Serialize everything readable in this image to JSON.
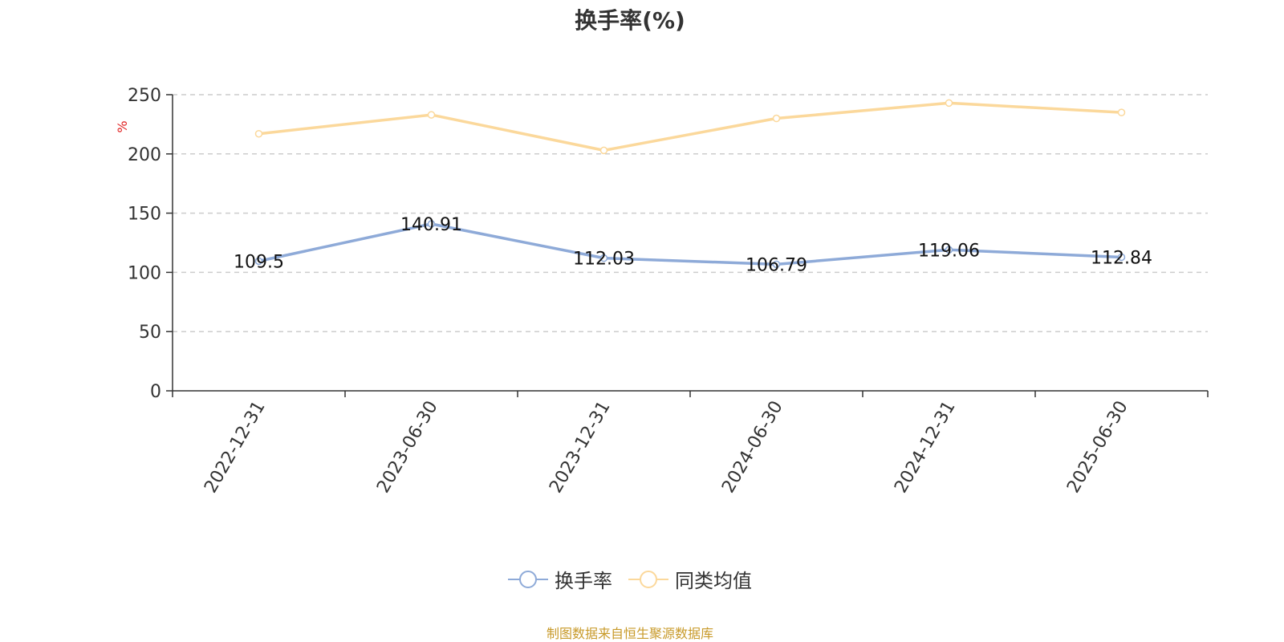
{
  "chart_data": {
    "type": "line",
    "title": "换手率(%)",
    "ylabel": "%",
    "categories": [
      "2022-12-31",
      "2023-06-30",
      "2023-12-31",
      "2024-06-30",
      "2024-12-31",
      "2025-06-30"
    ],
    "ylim": [
      0,
      250
    ],
    "yticks": [
      0,
      50,
      100,
      150,
      200,
      250
    ],
    "grid": true,
    "legend_position": "bottom",
    "series": [
      {
        "name": "换手率",
        "values": [
          109.5,
          140.91,
          112.03,
          106.79,
          119.06,
          112.84
        ],
        "labels": [
          "109.5",
          "140.91",
          "112.03",
          "106.79",
          "119.06",
          "112.84"
        ],
        "color": "#8eaad8"
      },
      {
        "name": "同类均值",
        "values": [
          217,
          233,
          203,
          230,
          243,
          235
        ],
        "color": "#fbd89b"
      }
    ]
  },
  "footer": {
    "source": "制图数据来自恒生聚源数据库"
  },
  "colors": {
    "axis": "#333333",
    "grid": "#cccccc",
    "ylabel": "#e02020",
    "source": "#c89a2a"
  }
}
